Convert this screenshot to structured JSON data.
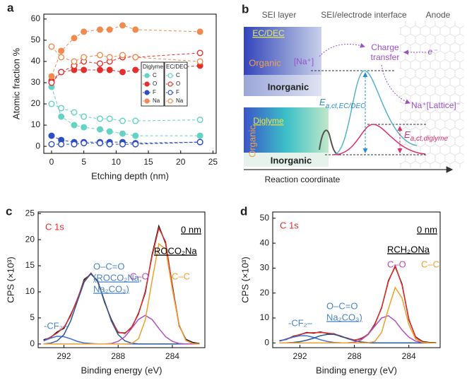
{
  "chart_data": [
    {
      "type": "line",
      "panel_label": "a",
      "x_label": "Etching depth (nm)",
      "y_label": "Atomic fraction %",
      "xlim": [
        -1.2,
        25.5
      ],
      "ylim": [
        -3.3,
        62.3
      ],
      "xticks": [
        0,
        5,
        10,
        15,
        20,
        25
      ],
      "yticks": [
        0,
        10,
        20,
        30,
        40,
        50,
        60
      ],
      "grid": false,
      "line_style": "dashed",
      "markers": true,
      "legend": "center-right",
      "x": [
        0,
        1.5,
        3.5,
        5,
        7.5,
        9,
        11,
        13,
        23
      ],
      "legend_groups": [
        {
          "title": "Diglyme",
          "marker": "filled",
          "series": [
            {
              "name": "C",
              "color": "#63d3c6",
              "values": [
                28,
                14,
                10,
                9,
                8,
                7,
                6,
                5,
                5
              ]
            },
            {
              "name": "O",
              "color": "#e4302c",
              "values": [
                31,
                35,
                36,
                36,
                36,
                36,
                35,
                36,
                38
              ]
            },
            {
              "name": "F",
              "color": "#2e4fc4",
              "values": [
                5,
                3,
                2,
                2,
                2,
                2,
                2,
                1.5,
                2
              ]
            },
            {
              "name": "Na",
              "color": "#f08a4e",
              "values": [
                33,
                45,
                51,
                54,
                55,
                55,
                57,
                55,
                54
              ]
            }
          ]
        },
        {
          "title": "EC/DEC",
          "marker": "open",
          "series": [
            {
              "name": "C",
              "color": "#63d3c6",
              "values": [
                20,
                18,
                16,
                14,
                13,
                13,
                12,
                12,
                12.5
              ]
            },
            {
              "name": "O",
              "color": "#e4302c",
              "values": [
                30,
                35,
                38,
                40,
                39,
                40,
                42,
                42,
                44
              ]
            },
            {
              "name": "F",
              "color": "#2e4fc4",
              "values": [
                1,
                1,
                1,
                1.5,
                1.5,
                1,
                1,
                1,
                2
              ]
            },
            {
              "name": "Na",
              "color": "#f08a4e",
              "values": [
                47,
                42,
                40,
                42,
                43,
                42,
                43,
                42,
                40
              ]
            }
          ]
        }
      ]
    },
    {
      "type": "line",
      "panel_label": "c",
      "x_label": "Binding energy (eV)",
      "y_label": "CPS (×10³)",
      "xlim": [
        293.9,
        281.6
      ],
      "ylim": [
        -0.7,
        25.3
      ],
      "xticks": [
        292,
        288,
        284
      ],
      "yticks": [
        0,
        5,
        10,
        15,
        20,
        25
      ],
      "grid": false,
      "line_style": "solid",
      "markers": false,
      "annotations": [
        {
          "text": "C 1s",
          "color": "#e4302c",
          "underline": false
        },
        {
          "text": "0 nm",
          "color": "#000000",
          "underline": true
        },
        {
          "text": "ROCO₂Na",
          "color": "#000000",
          "underline": true
        }
      ],
      "x": [
        293.5,
        293,
        292.5,
        292,
        291.5,
        291,
        290.5,
        290,
        289.5,
        289,
        288.5,
        288,
        287.5,
        287,
        286.5,
        286,
        285.5,
        285,
        284.5,
        284,
        283.5,
        283,
        282.5,
        282
      ],
      "series": [
        {
          "color": "#111111",
          "values": [
            0.8,
            1.2,
            2.3,
            3.0,
            5.6,
            8.5,
            12.4,
            13.4,
            12.1,
            8.0,
            4.7,
            2.2,
            2.1,
            3.1,
            5.9,
            9.8,
            17.1,
            22.6,
            19.3,
            11.2,
            3.5,
            0.9,
            0.3,
            0.1
          ]
        },
        {
          "color": "#e4302c",
          "values": [
            0.6,
            1.3,
            2.1,
            3.2,
            5.4,
            8.7,
            12.1,
            13.6,
            11.9,
            8.2,
            4.5,
            2.3,
            2.0,
            3.3,
            5.7,
            10.1,
            16.8,
            22.2,
            19.6,
            10.9,
            3.7,
            0.7,
            0.1,
            0
          ]
        },
        {
          "label": [
            "-CF₂–"
          ],
          "label_color": "#4a86c8",
          "color": "#3a6fd8",
          "values": [
            0.6,
            1.1,
            1.5,
            1.4,
            1.0,
            0.5,
            0.2,
            0.1,
            0,
            0,
            0,
            0,
            0,
            0,
            0,
            0,
            0,
            0,
            0,
            0,
            0,
            0,
            0,
            0
          ]
        },
        {
          "label": [
            "O–C=O",
            "(ROCO₂Na,",
            "Na₂CO₃)"
          ],
          "label_color": "#4a86c8",
          "color": "#2a5a9a",
          "values": [
            0,
            0.15,
            0.6,
            1.8,
            4.4,
            8.2,
            11.9,
            13.5,
            11.9,
            8.2,
            4.4,
            1.8,
            0.6,
            0.15,
            0,
            0,
            0,
            0,
            0,
            0,
            0,
            0,
            0,
            0
          ]
        },
        {
          "label": [
            "C–O"
          ],
          "label_color": "#b04fc0",
          "color": "#b04fc0",
          "values": [
            0,
            0,
            0,
            0,
            0,
            0,
            0,
            0,
            0,
            0,
            0.1,
            0.5,
            1.4,
            3.0,
            4.7,
            5.5,
            4.7,
            3.0,
            1.4,
            0.5,
            0.1,
            0,
            0,
            0
          ]
        },
        {
          "label": [
            "C–C"
          ],
          "label_color": "#f0a030",
          "color": "#f0a030",
          "values": [
            0,
            0,
            0,
            0,
            0,
            0,
            0,
            0,
            0,
            0,
            0,
            0,
            0,
            0.1,
            1.0,
            4.6,
            12.1,
            19.2,
            18.2,
            10.4,
            3.6,
            0.7,
            0.1,
            0
          ]
        }
      ]
    },
    {
      "type": "line",
      "panel_label": "d",
      "x_label": "Binding energy (eV)",
      "y_label": "CPS (×10³)",
      "xlim": [
        294,
        281.7
      ],
      "ylim": [
        -1.9,
        52.5
      ],
      "xticks": [
        292,
        288,
        284
      ],
      "yticks": [
        0,
        10,
        20,
        30,
        40,
        50
      ],
      "grid": false,
      "line_style": "solid",
      "markers": false,
      "annotations": [
        {
          "text": "C 1s",
          "color": "#e4302c",
          "underline": false
        },
        {
          "text": "0 nm",
          "color": "#000000",
          "underline": true
        },
        {
          "text": "RCH₂ONa",
          "color": "#000000",
          "underline": true
        }
      ],
      "x": [
        293.5,
        293,
        292.5,
        292,
        291.5,
        291,
        290.5,
        290,
        289.5,
        289,
        288.5,
        288,
        287.5,
        287,
        286.5,
        286,
        285.5,
        285,
        284.5,
        284,
        283.5,
        283,
        282.5,
        282
      ],
      "series": [
        {
          "color": "#111111",
          "values": [
            0.9,
            1.4,
            2.7,
            3.3,
            4.2,
            3.9,
            4.4,
            3.8,
            3.7,
            2.6,
            1.9,
            1.0,
            1.8,
            3.3,
            7.6,
            14.0,
            25.0,
            30.6,
            23.6,
            9.3,
            2.4,
            0.6,
            0.2,
            0.1
          ]
        },
        {
          "color": "#e4302c",
          "values": [
            0.7,
            1.6,
            2.5,
            3.4,
            4.0,
            4.1,
            4.2,
            4.0,
            3.6,
            2.8,
            1.8,
            1.2,
            1.6,
            3.5,
            7.3,
            14.2,
            24.6,
            31.0,
            23.2,
            9.6,
            2.2,
            0.4,
            0,
            0
          ]
        },
        {
          "label": [
            "-CF₂–"
          ],
          "label_color": "#4a86c8",
          "color": "#3a6fd8",
          "values": [
            0.7,
            1.5,
            2.3,
            2.9,
            2.9,
            2.2,
            1.3,
            0.6,
            0.2,
            0.06,
            0,
            0,
            0,
            0,
            0,
            0,
            0,
            0,
            0,
            0,
            0,
            0,
            0,
            0
          ]
        },
        {
          "label": [
            "O–C=O",
            "Na₂CO₃)"
          ],
          "label_color": "#4a86c8",
          "color": "#2a5a9a",
          "values": [
            0,
            0.05,
            0.2,
            0.5,
            1.1,
            1.9,
            2.9,
            3.4,
            3.4,
            2.7,
            1.7,
            0.9,
            0.4,
            0.1,
            0,
            0,
            0,
            0,
            0,
            0,
            0,
            0,
            0,
            0
          ]
        },
        {
          "label": [
            "C–O"
          ],
          "label_color": "#b04fc0",
          "color": "#b04fc0",
          "values": [
            0,
            0,
            0,
            0,
            0,
            0,
            0,
            0,
            0,
            0,
            0.06,
            0.3,
            1.2,
            3.3,
            6.7,
            10.0,
            10.9,
            8.8,
            5.2,
            2.3,
            0.7,
            0.2,
            0,
            0
          ]
        },
        {
          "label": [
            "C–C"
          ],
          "label_color": "#f0a030",
          "color": "#f0a030",
          "values": [
            0,
            0,
            0,
            0,
            0,
            0,
            0,
            0,
            0,
            0,
            0,
            0,
            0,
            0.05,
            0.6,
            4.2,
            13.7,
            22.2,
            18.0,
            7.3,
            1.5,
            0.2,
            0,
            0
          ]
        }
      ]
    }
  ],
  "diagram": {
    "panel_label": "b",
    "regions": [
      "SEI layer",
      "SEI/electrode interface",
      "Anode"
    ],
    "top_box": {
      "title": "EC/DEC",
      "organic": "Organic",
      "inorganic": "Inorganic"
    },
    "bottom_box": {
      "title": "Diglyme",
      "organic": "Organic",
      "inorganic": "Inorganic"
    },
    "species": "[Na⁺]",
    "charge_transfer": [
      "Charge",
      "transfer"
    ],
    "electron": "e⁻",
    "product": "Na⁺[Lattice]⁻",
    "barrier_ecdec": {
      "symbol": "E",
      "subscript": "a,ct,EC/DEC"
    },
    "barrier_diglyme": {
      "symbol": "E",
      "subscript": "a,ct,diglyme"
    },
    "axis_label": "Reaction coordinate"
  }
}
